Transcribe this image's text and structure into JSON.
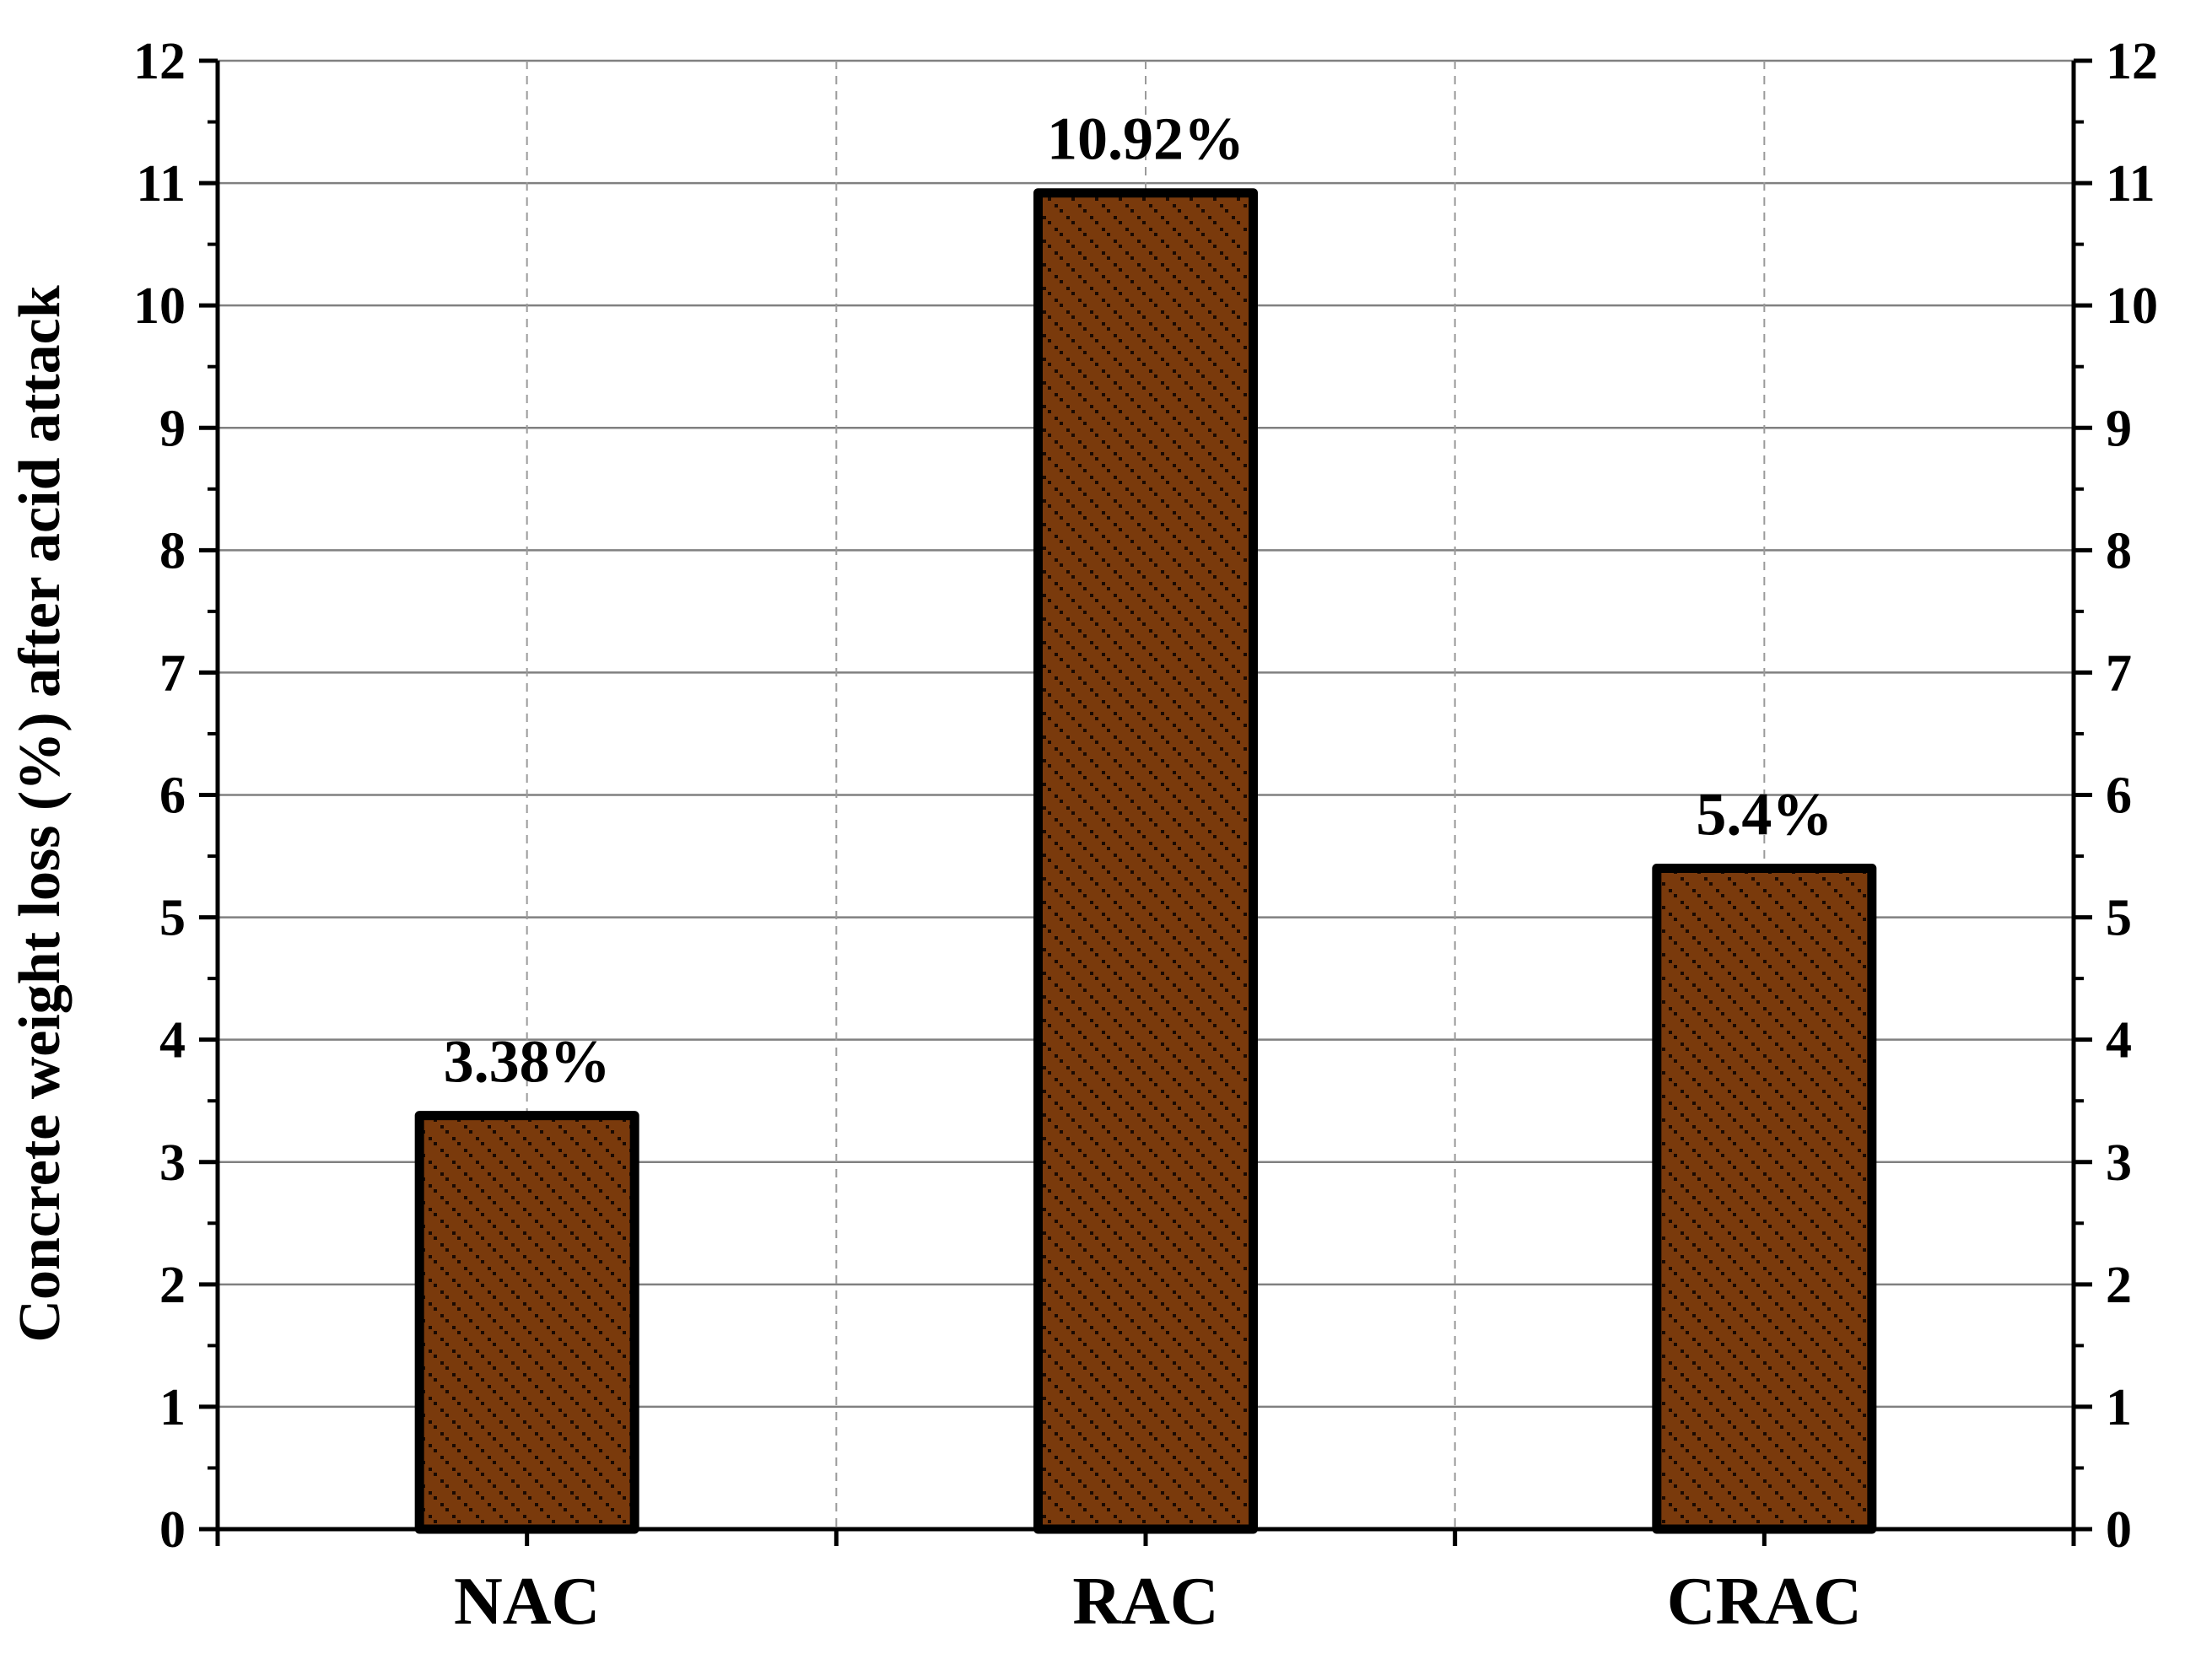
{
  "chart_data": {
    "type": "bar",
    "title": "",
    "xlabel": "",
    "ylabel": "Concrete weight loss (%) after acid attack",
    "categories": [
      "NAC",
      "RAC",
      "CRAC"
    ],
    "values": [
      3.38,
      10.92,
      5.4
    ],
    "data_labels": [
      "3.38%",
      "10.92%",
      "5.4%"
    ],
    "ylim": [
      0,
      12
    ],
    "yticks": [
      0,
      1,
      2,
      3,
      4,
      5,
      6,
      7,
      8,
      9,
      10,
      11,
      12
    ],
    "y_minor_step": 0.5,
    "right_axis_mirrored": true,
    "grid": {
      "horizontal": "solid",
      "vertical": "dashed"
    },
    "legend": "none",
    "colors": {
      "bar_fill": "#7a3a0c",
      "bar_pattern_dot": "#1a0a02",
      "bar_edge": "#000000",
      "grid_horizontal": "#808080",
      "grid_vertical": "#9a9a9a",
      "axis": "#000000"
    }
  }
}
